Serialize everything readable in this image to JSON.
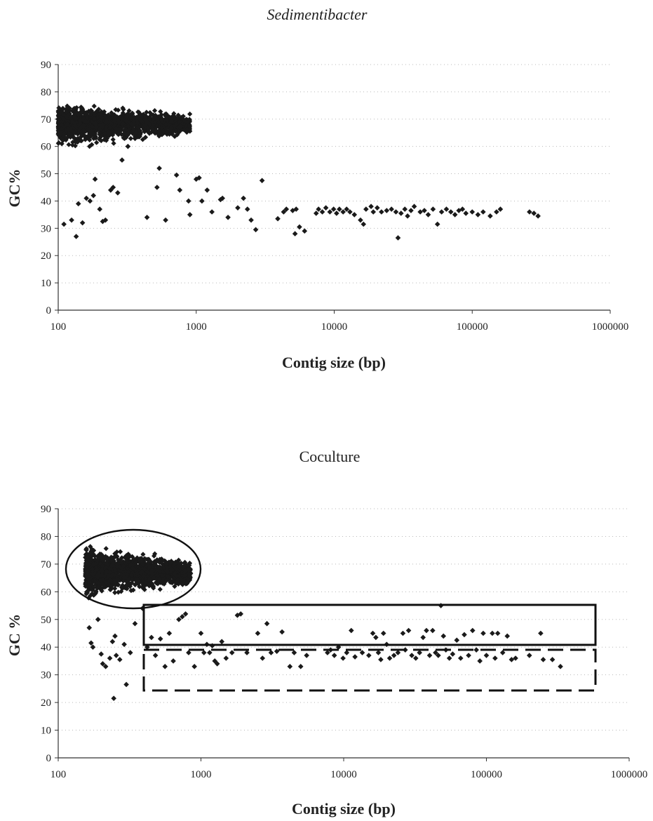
{
  "charts": [
    {
      "chart_data": {
        "type": "scatter",
        "title": "Sedimentibacter",
        "title_style": "italic",
        "xlabel": "Contig size (bp)",
        "ylabel": "GC%",
        "x_scale": "log",
        "xlim": [
          100,
          1000000
        ],
        "ylim": [
          0,
          90
        ],
        "x_ticks": [
          100,
          1000,
          10000,
          100000,
          1000000
        ],
        "x_tick_labels": [
          "100",
          "1000",
          "10000",
          "100000",
          "1000000"
        ],
        "y_ticks": [
          0,
          10,
          20,
          30,
          40,
          50,
          60,
          70,
          80,
          90
        ],
        "y_tick_labels": [
          "0",
          "10",
          "20",
          "30",
          "40",
          "50",
          "60",
          "70",
          "80",
          "90"
        ],
        "grid": "horizontal dotted",
        "marker": "diamond",
        "dense_cluster": {
          "x_range": [
            100,
            900
          ],
          "y_range": [
            58,
            78
          ],
          "n": 1400
        },
        "points": [
          [
            110,
            31.5
          ],
          [
            125,
            33
          ],
          [
            135,
            27
          ],
          [
            140,
            39
          ],
          [
            150,
            32
          ],
          [
            160,
            41
          ],
          [
            170,
            40
          ],
          [
            180,
            42
          ],
          [
            185,
            48
          ],
          [
            200,
            37
          ],
          [
            210,
            32.5
          ],
          [
            220,
            33
          ],
          [
            240,
            44
          ],
          [
            250,
            45
          ],
          [
            270,
            43
          ],
          [
            290,
            55
          ],
          [
            320,
            60
          ],
          [
            360,
            63
          ],
          [
            440,
            34
          ],
          [
            520,
            45
          ],
          [
            540,
            52
          ],
          [
            600,
            33
          ],
          [
            720,
            49.5
          ],
          [
            760,
            44
          ],
          [
            880,
            40
          ],
          [
            900,
            35
          ],
          [
            1000,
            48
          ],
          [
            1050,
            48.5
          ],
          [
            1100,
            40
          ],
          [
            1200,
            44
          ],
          [
            1300,
            36
          ],
          [
            1500,
            40.5
          ],
          [
            1550,
            41
          ],
          [
            1700,
            34
          ],
          [
            2000,
            37.5
          ],
          [
            2200,
            41
          ],
          [
            2350,
            37
          ],
          [
            2500,
            33
          ],
          [
            2700,
            29.5
          ],
          [
            3000,
            47.5
          ],
          [
            3900,
            33.5
          ],
          [
            4300,
            36
          ],
          [
            4500,
            37
          ],
          [
            5000,
            36.5
          ],
          [
            5300,
            37
          ],
          [
            5600,
            30.5
          ],
          [
            5200,
            28
          ],
          [
            6100,
            29
          ],
          [
            7400,
            35.5
          ],
          [
            7700,
            37
          ],
          [
            8200,
            36
          ],
          [
            8700,
            37.5
          ],
          [
            9300,
            36
          ],
          [
            9900,
            37
          ],
          [
            10400,
            35.5
          ],
          [
            10900,
            37
          ],
          [
            11600,
            36
          ],
          [
            12300,
            37
          ],
          [
            13000,
            36
          ],
          [
            14000,
            35
          ],
          [
            15500,
            33
          ],
          [
            16300,
            31.5
          ],
          [
            17000,
            37
          ],
          [
            18500,
            38
          ],
          [
            19200,
            36
          ],
          [
            20500,
            37.5
          ],
          [
            22000,
            36
          ],
          [
            24000,
            36.5
          ],
          [
            26000,
            37
          ],
          [
            28000,
            36
          ],
          [
            29000,
            26.5
          ],
          [
            30500,
            35.5
          ],
          [
            32500,
            37
          ],
          [
            34000,
            34.5
          ],
          [
            36000,
            36.5
          ],
          [
            38000,
            38
          ],
          [
            42000,
            36
          ],
          [
            45000,
            36.5
          ],
          [
            48000,
            35
          ],
          [
            52000,
            37
          ],
          [
            56000,
            31.5
          ],
          [
            60000,
            36
          ],
          [
            65000,
            37
          ],
          [
            70000,
            36
          ],
          [
            75000,
            35
          ],
          [
            80000,
            36.5
          ],
          [
            85000,
            37
          ],
          [
            90000,
            35.5
          ],
          [
            100000,
            36
          ],
          [
            110000,
            35
          ],
          [
            120000,
            36
          ],
          [
            135000,
            34.5
          ],
          [
            150000,
            36
          ],
          [
            160000,
            37
          ],
          [
            260000,
            36
          ],
          [
            280000,
            35.5
          ],
          [
            300000,
            34.5
          ]
        ]
      }
    },
    {
      "chart_data": {
        "type": "scatter",
        "title": "Coculture",
        "title_style": "normal",
        "xlabel": "Contig size (bp)",
        "ylabel": "GC %",
        "x_scale": "log",
        "xlim": [
          100,
          1000000
        ],
        "ylim": [
          0,
          90
        ],
        "x_ticks": [
          100,
          1000,
          10000,
          100000,
          1000000
        ],
        "x_tick_labels": [
          "100",
          "1000",
          "10000",
          "100000",
          "1000000"
        ],
        "y_ticks": [
          0,
          10,
          20,
          30,
          40,
          50,
          60,
          70,
          80,
          90
        ],
        "y_tick_labels": [
          "0",
          "10",
          "20",
          "30",
          "40",
          "50",
          "60",
          "70",
          "80",
          "90"
        ],
        "grid": "horizontal dotted",
        "marker": "diamond",
        "dense_cluster": {
          "x_range": [
            155,
            850
          ],
          "y_range": [
            56,
            78
          ],
          "n": 1500
        },
        "points": [
          [
            165,
            47
          ],
          [
            170,
            41.5
          ],
          [
            175,
            40
          ],
          [
            190,
            50
          ],
          [
            200,
            37.5
          ],
          [
            205,
            34
          ],
          [
            215,
            33
          ],
          [
            230,
            36
          ],
          [
            240,
            42
          ],
          [
            245,
            21.5
          ],
          [
            250,
            44
          ],
          [
            255,
            37
          ],
          [
            270,
            35.5
          ],
          [
            290,
            41
          ],
          [
            300,
            26.5
          ],
          [
            320,
            38
          ],
          [
            345,
            48.5
          ],
          [
            390,
            54
          ],
          [
            420,
            40
          ],
          [
            450,
            43.5
          ],
          [
            480,
            37
          ],
          [
            520,
            43
          ],
          [
            560,
            33
          ],
          [
            600,
            45
          ],
          [
            640,
            35
          ],
          [
            700,
            50
          ],
          [
            740,
            51
          ],
          [
            780,
            52
          ],
          [
            820,
            38
          ],
          [
            900,
            33
          ],
          [
            1000,
            45
          ],
          [
            1050,
            38
          ],
          [
            1100,
            41
          ],
          [
            1150,
            38
          ],
          [
            1200,
            40.5
          ],
          [
            1250,
            35
          ],
          [
            1300,
            34
          ],
          [
            1400,
            42
          ],
          [
            1500,
            36
          ],
          [
            1650,
            38
          ],
          [
            1800,
            51.5
          ],
          [
            1900,
            52
          ],
          [
            2100,
            38
          ],
          [
            2500,
            45
          ],
          [
            2700,
            36
          ],
          [
            2900,
            48.5
          ],
          [
            3100,
            38
          ],
          [
            3400,
            38.5
          ],
          [
            3700,
            45.5
          ],
          [
            4200,
            33
          ],
          [
            4500,
            38
          ],
          [
            5000,
            33
          ],
          [
            5500,
            37
          ],
          [
            7700,
            38
          ],
          [
            8100,
            39
          ],
          [
            8600,
            37
          ],
          [
            9200,
            40
          ],
          [
            9900,
            36
          ],
          [
            10500,
            38
          ],
          [
            11300,
            46
          ],
          [
            12000,
            36.5
          ],
          [
            13500,
            38
          ],
          [
            15000,
            37
          ],
          [
            16000,
            45
          ],
          [
            16800,
            43.5
          ],
          [
            17500,
            38
          ],
          [
            18200,
            35.5
          ],
          [
            19000,
            45
          ],
          [
            20000,
            41
          ],
          [
            21000,
            36
          ],
          [
            22500,
            37
          ],
          [
            24000,
            38
          ],
          [
            26000,
            45
          ],
          [
            27000,
            39
          ],
          [
            28500,
            46
          ],
          [
            30000,
            37
          ],
          [
            32000,
            36
          ],
          [
            34000,
            38
          ],
          [
            36000,
            43.5
          ],
          [
            38000,
            46
          ],
          [
            40000,
            37
          ],
          [
            42000,
            46
          ],
          [
            44000,
            38
          ],
          [
            46000,
            37
          ],
          [
            48000,
            55
          ],
          [
            50000,
            44
          ],
          [
            52000,
            39
          ],
          [
            55000,
            36
          ],
          [
            58000,
            37.5
          ],
          [
            62000,
            42.5
          ],
          [
            66000,
            36
          ],
          [
            70000,
            44.5
          ],
          [
            75000,
            37
          ],
          [
            80000,
            46
          ],
          [
            85000,
            39
          ],
          [
            90000,
            35
          ],
          [
            95000,
            45
          ],
          [
            100000,
            37
          ],
          [
            110000,
            45
          ],
          [
            115000,
            36
          ],
          [
            120000,
            45
          ],
          [
            130000,
            38
          ],
          [
            140000,
            44
          ],
          [
            150000,
            35.5
          ],
          [
            160000,
            36
          ],
          [
            200000,
            37
          ],
          [
            240000,
            45
          ],
          [
            250000,
            35.5
          ],
          [
            290000,
            35.5
          ],
          [
            330000,
            33
          ]
        ]
      }
    }
  ]
}
